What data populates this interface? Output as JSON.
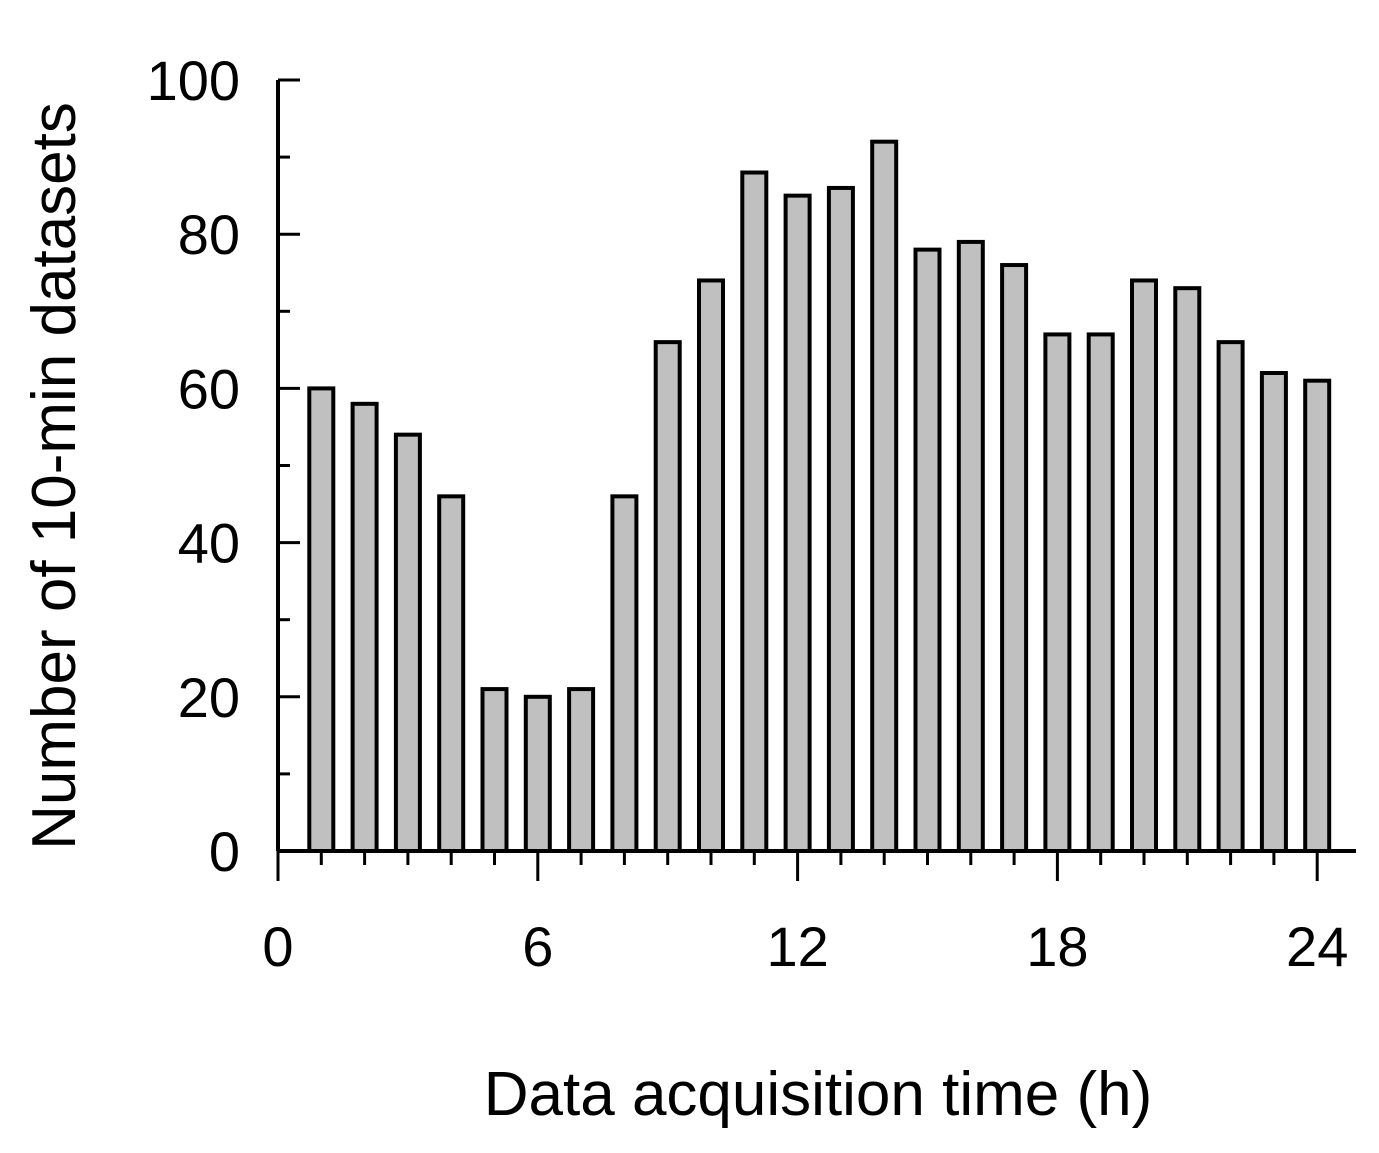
{
  "chart_data": {
    "type": "bar",
    "title": "",
    "xlabel": "Data acquisition time (h)",
    "ylabel": "Number of 10-min datasets",
    "x": [
      1,
      2,
      3,
      4,
      5,
      6,
      7,
      8,
      9,
      10,
      11,
      12,
      13,
      14,
      15,
      16,
      17,
      18,
      19,
      20,
      21,
      22,
      23,
      24
    ],
    "values": [
      60,
      58,
      54,
      46,
      21,
      20,
      21,
      46,
      66,
      74,
      88,
      85,
      86,
      92,
      78,
      79,
      76,
      67,
      67,
      74,
      73,
      66,
      62,
      61
    ],
    "xlim": [
      0,
      25
    ],
    "ylim": [
      0,
      100
    ],
    "x_major_ticks": [
      0,
      6,
      12,
      18,
      24
    ],
    "y_major_ticks": [
      0,
      20,
      40,
      60,
      80,
      100
    ],
    "x_tick_labels": [
      "0",
      "6",
      "12",
      "18",
      "24"
    ],
    "y_tick_labels": [
      "0",
      "20",
      "40",
      "60",
      "80",
      "100"
    ],
    "grid": false,
    "legend": "none",
    "colors": {
      "bar_fill": "#c0c0c0",
      "bar_edge": "#000000",
      "axis": "#000000"
    }
  }
}
